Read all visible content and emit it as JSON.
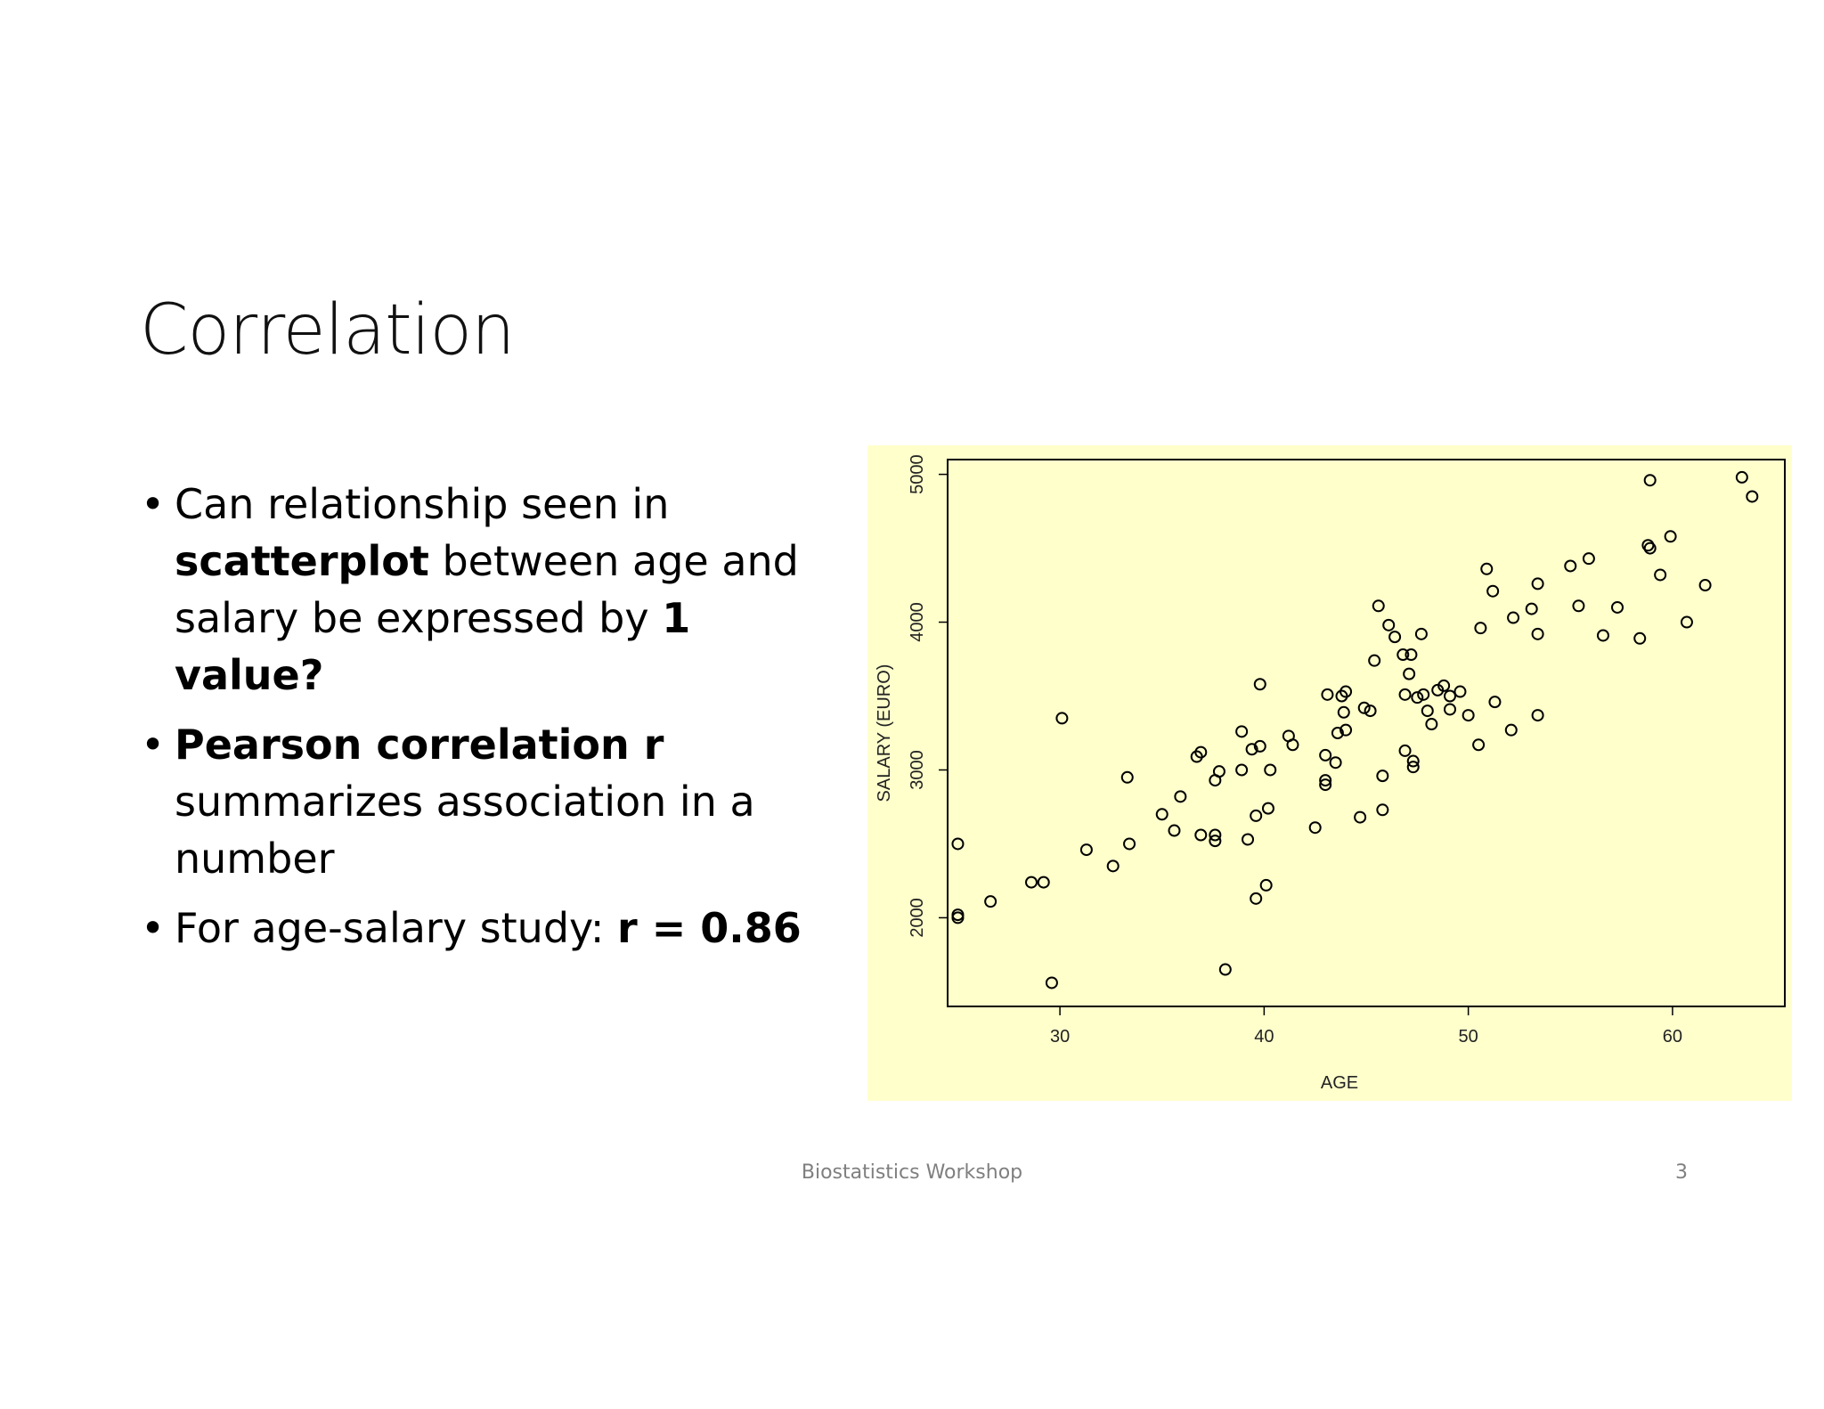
{
  "slide": {
    "title": "Correlation",
    "bullets": [
      {
        "parts": [
          {
            "text": "Can relationship seen in ",
            "bold": false
          },
          {
            "text": "scatterplot",
            "bold": true
          },
          {
            "text": " between age and salary be expressed by ",
            "bold": false
          },
          {
            "text": "1 value?",
            "bold": true
          }
        ]
      },
      {
        "parts": [
          {
            "text": "Pearson correlation r",
            "bold": true
          },
          {
            "text": " summarizes association in a number",
            "bold": false
          }
        ]
      },
      {
        "parts": [
          {
            "text": "For age-salary study: ",
            "bold": false
          },
          {
            "text": "r = 0.86",
            "bold": true
          }
        ]
      }
    ],
    "bullet_glyph": "•"
  },
  "footer": {
    "center_text": "Biostatistics Workshop",
    "page_number": "3"
  },
  "colors": {
    "chart_background": "#ffffcc",
    "point_stroke": "#000000"
  },
  "chart_data": {
    "type": "scatter",
    "xlabel": "AGE",
    "ylabel": "SALARY (EURO)",
    "xlim": [
      24.5,
      65.5
    ],
    "ylim": [
      1400,
      5100
    ],
    "xticks": [
      30,
      40,
      50,
      60
    ],
    "yticks": [
      2000,
      3000,
      4000,
      5000
    ],
    "grid": false,
    "points": [
      [
        25,
        2500
      ],
      [
        25,
        2020
      ],
      [
        25,
        2000
      ],
      [
        26.6,
        2110
      ],
      [
        28.6,
        2240
      ],
      [
        29.2,
        2240
      ],
      [
        29.6,
        1560
      ],
      [
        30.1,
        3350
      ],
      [
        31.3,
        2460
      ],
      [
        32.6,
        2350
      ],
      [
        33.3,
        2950
      ],
      [
        33.4,
        2500
      ],
      [
        35,
        2700
      ],
      [
        35.6,
        2590
      ],
      [
        35.9,
        2820
      ],
      [
        36.7,
        3090
      ],
      [
        36.9,
        3120
      ],
      [
        36.9,
        2560
      ],
      [
        37.6,
        2560
      ],
      [
        37.6,
        2520
      ],
      [
        37.6,
        2930
      ],
      [
        37.8,
        2990
      ],
      [
        38.1,
        1650
      ],
      [
        38.9,
        3260
      ],
      [
        38.9,
        3000
      ],
      [
        39.2,
        2530
      ],
      [
        39.4,
        3140
      ],
      [
        39.6,
        2690
      ],
      [
        39.6,
        2130
      ],
      [
        39.8,
        3160
      ],
      [
        39.8,
        3580
      ],
      [
        40.1,
        2220
      ],
      [
        40.2,
        2740
      ],
      [
        40.3,
        3000
      ],
      [
        41.2,
        3230
      ],
      [
        41.4,
        3170
      ],
      [
        42.5,
        2610
      ],
      [
        43,
        3100
      ],
      [
        43,
        2930
      ],
      [
        43,
        2900
      ],
      [
        43.1,
        3510
      ],
      [
        43.5,
        3050
      ],
      [
        43.6,
        3250
      ],
      [
        43.8,
        3500
      ],
      [
        43.9,
        3390
      ],
      [
        44,
        3530
      ],
      [
        44,
        3270
      ],
      [
        44.7,
        2680
      ],
      [
        44.9,
        3420
      ],
      [
        45.2,
        3400
      ],
      [
        45.4,
        3740
      ],
      [
        45.6,
        4110
      ],
      [
        45.8,
        2730
      ],
      [
        45.8,
        2960
      ],
      [
        46.1,
        3980
      ],
      [
        46.4,
        3900
      ],
      [
        46.8,
        3780
      ],
      [
        46.9,
        3130
      ],
      [
        46.9,
        3510
      ],
      [
        47.1,
        3650
      ],
      [
        47.2,
        3780
      ],
      [
        47.3,
        3060
      ],
      [
        47.3,
        3020
      ],
      [
        47.5,
        3490
      ],
      [
        47.7,
        3920
      ],
      [
        47.8,
        3510
      ],
      [
        48,
        3400
      ],
      [
        48.2,
        3310
      ],
      [
        48.5,
        3540
      ],
      [
        48.8,
        3570
      ],
      [
        49.1,
        3500
      ],
      [
        49.1,
        3410
      ],
      [
        49.6,
        3530
      ],
      [
        50,
        3370
      ],
      [
        50.5,
        3170
      ],
      [
        50.6,
        3960
      ],
      [
        50.9,
        4360
      ],
      [
        51.2,
        4210
      ],
      [
        51.3,
        3460
      ],
      [
        52.1,
        3270
      ],
      [
        52.2,
        4030
      ],
      [
        53.1,
        4090
      ],
      [
        53.4,
        4260
      ],
      [
        53.4,
        3920
      ],
      [
        53.4,
        3370
      ],
      [
        55,
        4380
      ],
      [
        55.4,
        4110
      ],
      [
        55.9,
        4430
      ],
      [
        56.6,
        3910
      ],
      [
        57.3,
        4100
      ],
      [
        58.4,
        3890
      ],
      [
        58.8,
        4520
      ],
      [
        58.9,
        4500
      ],
      [
        58.9,
        4960
      ],
      [
        59.4,
        4320
      ],
      [
        59.9,
        4580
      ],
      [
        60.7,
        4000
      ],
      [
        61.6,
        4250
      ],
      [
        63.4,
        4980
      ],
      [
        63.9,
        4850
      ]
    ]
  }
}
